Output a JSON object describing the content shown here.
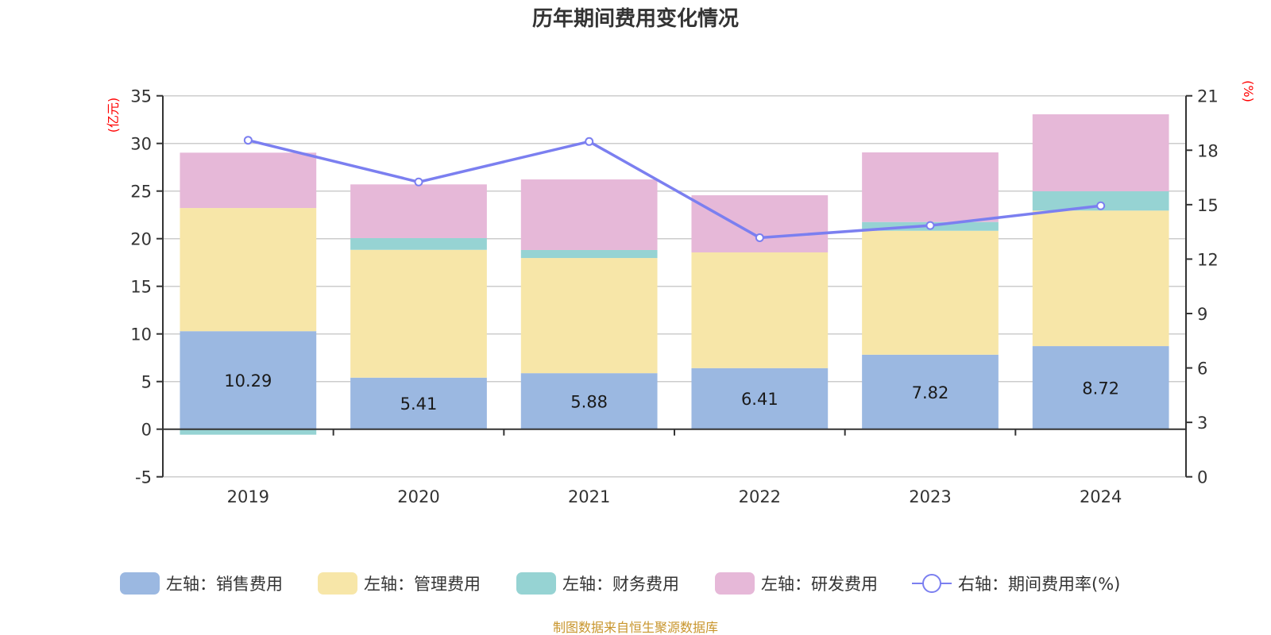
{
  "chart_data": {
    "type": "bar",
    "stacked": true,
    "title": "历年期间费用变化情况",
    "categories": [
      "2019",
      "2020",
      "2021",
      "2022",
      "2023",
      "2024"
    ],
    "left_axis": {
      "name": "(亿元)",
      "min": -5,
      "max": 35,
      "interval": 5,
      "ticks": [
        "-5",
        "0",
        "5",
        "10",
        "15",
        "20",
        "25",
        "30",
        "35"
      ]
    },
    "right_axis": {
      "name": "(%)",
      "min": 0,
      "max": 21,
      "interval": 3,
      "ticks": [
        "0",
        "3",
        "6",
        "9",
        "12",
        "15",
        "18",
        "21"
      ]
    },
    "grid": true,
    "series": [
      {
        "name": "左轴：销售费用",
        "type": "bar",
        "axis": "left",
        "color": "#9bb8e1",
        "values": [
          10.29,
          5.41,
          5.88,
          6.41,
          7.82,
          8.72
        ],
        "show_labels": true,
        "labels": [
          "10.29",
          "5.41",
          "5.88",
          "6.41",
          "7.82",
          "8.72"
        ]
      },
      {
        "name": "左轴：管理费用",
        "type": "bar",
        "axis": "left",
        "color": "#f7e6a8",
        "values": [
          12.93,
          13.42,
          12.09,
          12.15,
          13.01,
          14.23
        ],
        "show_labels": false
      },
      {
        "name": "左轴：财务费用",
        "type": "bar",
        "axis": "left",
        "color": "#96d3d3",
        "values": [
          -0.58,
          1.23,
          0.84,
          -0.02,
          0.92,
          2.03
        ],
        "show_labels": false
      },
      {
        "name": "左轴：研发费用",
        "type": "bar",
        "axis": "left",
        "color": "#e6b8d8",
        "values": [
          5.81,
          5.64,
          7.41,
          6.0,
          7.31,
          8.08
        ],
        "show_labels": false
      },
      {
        "name": "右轴：期间费用率(%)",
        "type": "line",
        "axis": "right",
        "color": "#7b7ff0",
        "values": [
          18.55,
          16.25,
          18.48,
          13.18,
          13.85,
          14.94
        ],
        "show_labels": false
      }
    ],
    "legend_position": "bottom",
    "footer": "制图数据来自恒生聚源数据库"
  }
}
